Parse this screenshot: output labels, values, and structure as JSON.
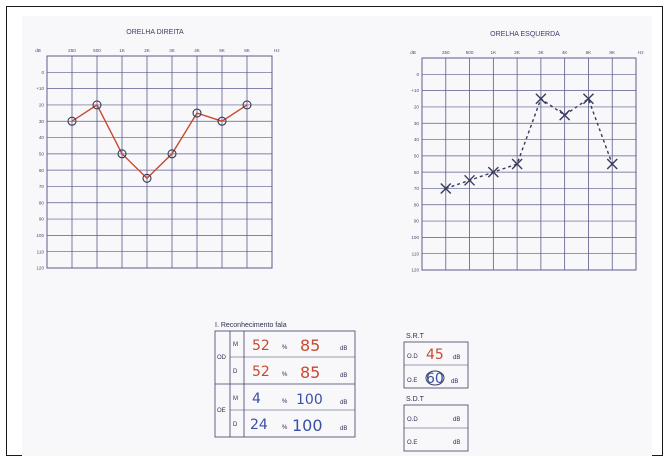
{
  "chart_data": [
    {
      "type": "line",
      "title": "ORELHA DIREITA",
      "ylabel": "dB",
      "xunit": "Hz",
      "x_ticks": [
        "250",
        "500",
        "1K",
        "2K",
        "3K",
        "4K",
        "6K",
        "8K"
      ],
      "y_ticks": [
        "0",
        "+10",
        "20",
        "30",
        "40",
        "50",
        "60",
        "70",
        "80",
        "90",
        "100",
        "110",
        "120"
      ],
      "ylim": [
        -10,
        120
      ],
      "y_inverted": true,
      "grid": true,
      "series": [
        {
          "color": "#c84a2e",
          "marker": "circle",
          "points": [
            {
              "x": "250",
              "y": 30
            },
            {
              "x": "500",
              "y": 20
            },
            {
              "x": "1K",
              "y": 50
            },
            {
              "x": "2K",
              "y": 65
            },
            {
              "x": "3K",
              "y": 50
            },
            {
              "x": "4K",
              "y": 25
            },
            {
              "x": "6K",
              "y": 30
            },
            {
              "x": "8K",
              "y": 20
            }
          ]
        }
      ]
    },
    {
      "type": "line",
      "title": "ORELHA ESQUERDA",
      "ylabel": "dB",
      "xunit": "Hz",
      "x_ticks": [
        "250",
        "500",
        "1K",
        "2K",
        "3K",
        "4K",
        "6K",
        "8K"
      ],
      "y_ticks": [
        "0",
        "+10",
        "20",
        "30",
        "40",
        "50",
        "60",
        "70",
        "80",
        "90",
        "100",
        "110",
        "120"
      ],
      "ylim": [
        -10,
        120
      ],
      "y_inverted": true,
      "grid": true,
      "series": [
        {
          "color": "#3a3a5a",
          "marker": "x",
          "points": [
            {
              "x": "250",
              "y": 70
            },
            {
              "x": "500",
              "y": 65
            },
            {
              "x": "1K",
              "y": 60
            },
            {
              "x": "2K",
              "y": 55
            },
            {
              "x": "3K",
              "y": 15
            },
            {
              "x": "4K",
              "y": 25
            },
            {
              "x": "6K",
              "y": 15
            },
            {
              "x": "8K",
              "y": 55
            }
          ]
        }
      ]
    }
  ],
  "speech_recognition": {
    "title": "I. Reconhecimento fala",
    "rows": [
      {
        "ear": "OD",
        "type": "M",
        "level": "52",
        "pct_sym": "%",
        "score": "85",
        "unit": "dB"
      },
      {
        "ear": "",
        "type": "D",
        "level": "52",
        "pct_sym": "%",
        "score": "85",
        "unit": "dB"
      },
      {
        "ear": "OE",
        "type": "M",
        "level": "4",
        "pct_sym": "%",
        "score": "100",
        "unit": "dB"
      },
      {
        "ear": "",
        "type": "D",
        "level": "24",
        "pct_sym": "%",
        "score": "100",
        "unit": "dB"
      }
    ]
  },
  "srt": {
    "title": "S.R.T",
    "rows": [
      {
        "label": "O.D",
        "value": "45",
        "unit": "dB"
      },
      {
        "label": "O.E",
        "value": "60",
        "unit": "dB"
      }
    ]
  },
  "sdt": {
    "title": "S.D.T",
    "rows": [
      {
        "label": "O.D",
        "value": "",
        "unit": "dB"
      },
      {
        "label": "O.E",
        "value": "",
        "unit": "dB"
      }
    ]
  }
}
